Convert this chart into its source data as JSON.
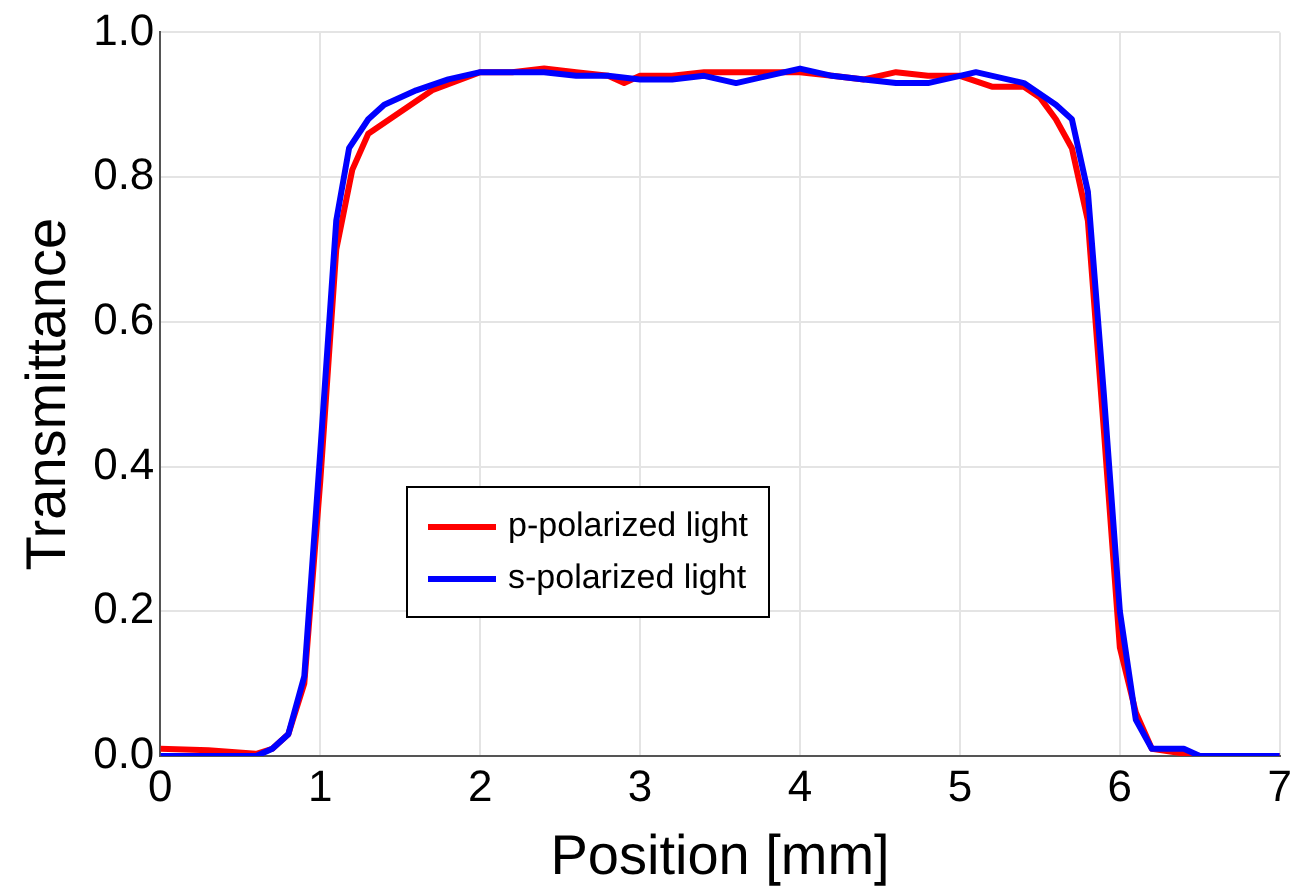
{
  "chart_data": {
    "type": "line",
    "xlabel": "Position [mm]",
    "ylabel": "Transmittance",
    "xlim": [
      0,
      7
    ],
    "xticks": [
      0,
      1,
      2,
      3,
      4,
      5,
      6,
      7
    ],
    "ylim": [
      0,
      1
    ],
    "yticks": [
      {
        "value": 0,
        "label": "0.0"
      },
      {
        "value": 0.2,
        "label": "0.2"
      },
      {
        "value": 0.4,
        "label": "0.4"
      },
      {
        "value": 0.6,
        "label": "0.6"
      },
      {
        "value": 0.8,
        "label": "0.8"
      },
      {
        "value": 1,
        "label": "1.0"
      }
    ],
    "grid": true,
    "legend": "bottom left",
    "marker": "none",
    "line_style": "solid",
    "series": [
      {
        "name": "p-polarized light",
        "color": "#ff0000",
        "x": [
          0,
          0.3,
          0.6,
          0.7,
          0.8,
          0.9,
          1.0,
          1.1,
          1.2,
          1.3,
          1.5,
          1.7,
          2.0,
          2.2,
          2.4,
          2.6,
          2.8,
          2.9,
          3.0,
          3.2,
          3.4,
          3.6,
          3.8,
          4.0,
          4.2,
          4.4,
          4.6,
          4.8,
          5.0,
          5.2,
          5.4,
          5.5,
          5.6,
          5.7,
          5.8,
          5.9,
          6.0,
          6.1,
          6.2,
          6.5,
          7.0
        ],
        "values": [
          0.01,
          0.008,
          0.003,
          0.01,
          0.03,
          0.1,
          0.38,
          0.7,
          0.81,
          0.86,
          0.89,
          0.92,
          0.945,
          0.945,
          0.95,
          0.945,
          0.94,
          0.93,
          0.94,
          0.94,
          0.945,
          0.945,
          0.945,
          0.945,
          0.94,
          0.935,
          0.945,
          0.94,
          0.94,
          0.925,
          0.925,
          0.91,
          0.88,
          0.84,
          0.74,
          0.45,
          0.15,
          0.06,
          0.01,
          0,
          0
        ]
      },
      {
        "name": "s-polarized light",
        "color": "#0000ff",
        "x": [
          0,
          0.3,
          0.6,
          0.7,
          0.8,
          0.9,
          1.0,
          1.1,
          1.18,
          1.3,
          1.4,
          1.5,
          1.6,
          1.8,
          2.0,
          2.2,
          2.4,
          2.6,
          2.8,
          3.0,
          3.2,
          3.4,
          3.6,
          3.8,
          4.0,
          4.2,
          4.4,
          4.6,
          4.8,
          5.0,
          5.1,
          5.4,
          5.6,
          5.7,
          5.8,
          5.9,
          6.0,
          6.1,
          6.2,
          6.4,
          6.5,
          7.0
        ],
        "values": [
          0,
          0,
          0,
          0.01,
          0.03,
          0.11,
          0.42,
          0.74,
          0.84,
          0.88,
          0.9,
          0.91,
          0.92,
          0.935,
          0.945,
          0.945,
          0.945,
          0.94,
          0.94,
          0.935,
          0.935,
          0.94,
          0.93,
          0.94,
          0.95,
          0.94,
          0.935,
          0.93,
          0.93,
          0.94,
          0.945,
          0.93,
          0.9,
          0.88,
          0.78,
          0.5,
          0.2,
          0.05,
          0.01,
          0.01,
          0,
          0
        ]
      }
    ]
  }
}
